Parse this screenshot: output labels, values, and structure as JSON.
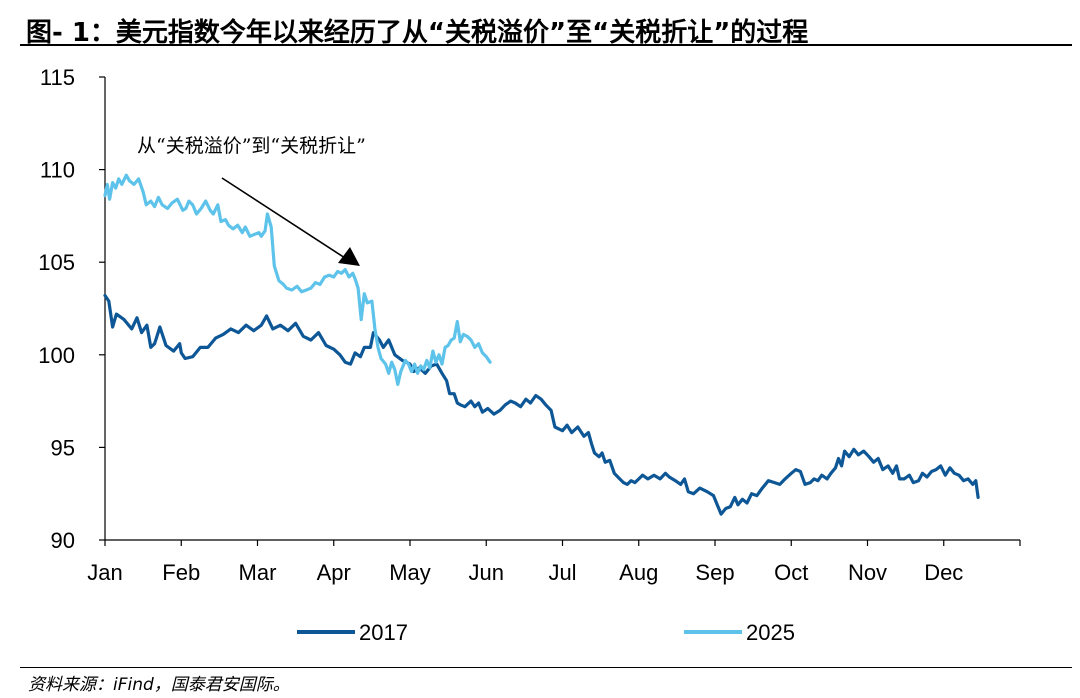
{
  "title": "图- 1：美元指数今年以来经历了从“关税溢价”至“关税折让”的过程",
  "source": "资料来源：iFind，国泰君安国际。",
  "annotation": "从“关税溢价”到“关税折让”",
  "colors": {
    "series_2017": "#0e5796",
    "series_2025": "#5ec3ea",
    "axis": "#000000"
  },
  "chart_data": {
    "type": "line",
    "x_categories": [
      "Jan",
      "Feb",
      "Mar",
      "Apr",
      "May",
      "Jun",
      "Jul",
      "Aug",
      "Sep",
      "Oct",
      "Nov",
      "Dec"
    ],
    "yticks": [
      90,
      95,
      100,
      105,
      110,
      115
    ],
    "ylim": [
      90,
      115
    ],
    "grid": false,
    "legend_position": "bottom",
    "series": [
      {
        "name": "2017",
        "color": "#0e5796",
        "points": [
          [
            0.0,
            103.2
          ],
          [
            0.05,
            102.9
          ],
          [
            0.1,
            101.5
          ],
          [
            0.15,
            102.2
          ],
          [
            0.25,
            101.9
          ],
          [
            0.35,
            101.4
          ],
          [
            0.42,
            102.0
          ],
          [
            0.48,
            101.2
          ],
          [
            0.55,
            101.6
          ],
          [
            0.6,
            100.4
          ],
          [
            0.65,
            100.6
          ],
          [
            0.72,
            101.5
          ],
          [
            0.8,
            100.5
          ],
          [
            0.9,
            100.2
          ],
          [
            0.98,
            100.6
          ],
          [
            1.0,
            100.1
          ],
          [
            1.05,
            99.8
          ],
          [
            1.15,
            99.9
          ],
          [
            1.25,
            100.4
          ],
          [
            1.35,
            100.4
          ],
          [
            1.45,
            100.9
          ],
          [
            1.55,
            101.1
          ],
          [
            1.65,
            101.4
          ],
          [
            1.75,
            101.2
          ],
          [
            1.85,
            101.6
          ],
          [
            1.95,
            101.3
          ],
          [
            2.05,
            101.6
          ],
          [
            2.12,
            102.1
          ],
          [
            2.2,
            101.4
          ],
          [
            2.3,
            101.6
          ],
          [
            2.4,
            101.3
          ],
          [
            2.5,
            101.7
          ],
          [
            2.6,
            101.0
          ],
          [
            2.7,
            100.8
          ],
          [
            2.8,
            101.2
          ],
          [
            2.9,
            100.5
          ],
          [
            3.0,
            100.3
          ],
          [
            3.08,
            100.0
          ],
          [
            3.15,
            99.6
          ],
          [
            3.22,
            99.5
          ],
          [
            3.28,
            100.1
          ],
          [
            3.35,
            99.9
          ],
          [
            3.4,
            100.4
          ],
          [
            3.48,
            100.4
          ],
          [
            3.52,
            101.2
          ],
          [
            3.6,
            100.8
          ],
          [
            3.65,
            100.4
          ],
          [
            3.72,
            100.8
          ],
          [
            3.8,
            100.0
          ],
          [
            3.9,
            99.7
          ],
          [
            4.0,
            99.5
          ],
          [
            4.05,
            99.1
          ],
          [
            4.12,
            99.3
          ],
          [
            4.2,
            99.0
          ],
          [
            4.28,
            99.4
          ],
          [
            4.35,
            99.5
          ],
          [
            4.42,
            99.0
          ],
          [
            4.48,
            98.6
          ],
          [
            4.52,
            97.9
          ],
          [
            4.58,
            97.9
          ],
          [
            4.62,
            97.4
          ],
          [
            4.66,
            97.3
          ],
          [
            4.72,
            97.2
          ],
          [
            4.8,
            97.5
          ],
          [
            4.85,
            97.2
          ],
          [
            4.9,
            97.4
          ],
          [
            4.95,
            96.9
          ],
          [
            5.02,
            97.1
          ],
          [
            5.1,
            96.8
          ],
          [
            5.18,
            97.0
          ],
          [
            5.25,
            97.3
          ],
          [
            5.32,
            97.5
          ],
          [
            5.38,
            97.4
          ],
          [
            5.45,
            97.2
          ],
          [
            5.52,
            97.6
          ],
          [
            5.58,
            97.4
          ],
          [
            5.65,
            97.8
          ],
          [
            5.72,
            97.6
          ],
          [
            5.78,
            97.3
          ],
          [
            5.85,
            97.0
          ],
          [
            5.9,
            96.1
          ],
          [
            6.0,
            95.9
          ],
          [
            6.06,
            96.2
          ],
          [
            6.12,
            95.8
          ],
          [
            6.2,
            96.1
          ],
          [
            6.28,
            95.6
          ],
          [
            6.34,
            95.8
          ],
          [
            6.38,
            95.2
          ],
          [
            6.42,
            94.7
          ],
          [
            6.48,
            94.5
          ],
          [
            6.52,
            94.7
          ],
          [
            6.56,
            94.2
          ],
          [
            6.62,
            94.3
          ],
          [
            6.68,
            93.6
          ],
          [
            6.75,
            93.3
          ],
          [
            6.8,
            93.1
          ],
          [
            6.85,
            93.0
          ],
          [
            6.9,
            93.2
          ],
          [
            6.95,
            93.1
          ],
          [
            7.0,
            93.3
          ],
          [
            7.05,
            93.5
          ],
          [
            7.12,
            93.3
          ],
          [
            7.2,
            93.5
          ],
          [
            7.28,
            93.3
          ],
          [
            7.35,
            93.6
          ],
          [
            7.4,
            93.4
          ],
          [
            7.48,
            93.2
          ],
          [
            7.55,
            93.0
          ],
          [
            7.6,
            93.3
          ],
          [
            7.65,
            92.6
          ],
          [
            7.72,
            92.5
          ],
          [
            7.8,
            92.8
          ],
          [
            7.9,
            92.6
          ],
          [
            7.98,
            92.4
          ],
          [
            8.02,
            92.0
          ],
          [
            8.08,
            91.4
          ],
          [
            8.14,
            91.7
          ],
          [
            8.2,
            91.8
          ],
          [
            8.26,
            92.3
          ],
          [
            8.3,
            91.9
          ],
          [
            8.36,
            92.2
          ],
          [
            8.42,
            92.0
          ],
          [
            8.48,
            92.5
          ],
          [
            8.55,
            92.4
          ],
          [
            8.62,
            92.8
          ],
          [
            8.7,
            93.2
          ],
          [
            8.78,
            93.1
          ],
          [
            8.85,
            93.0
          ],
          [
            8.92,
            93.3
          ],
          [
            9.0,
            93.6
          ],
          [
            9.06,
            93.8
          ],
          [
            9.12,
            93.7
          ],
          [
            9.18,
            93.0
          ],
          [
            9.25,
            93.1
          ],
          [
            9.3,
            93.3
          ],
          [
            9.35,
            93.2
          ],
          [
            9.4,
            93.5
          ],
          [
            9.47,
            93.3
          ],
          [
            9.52,
            93.6
          ],
          [
            9.58,
            93.9
          ],
          [
            9.62,
            94.4
          ],
          [
            9.66,
            94.0
          ],
          [
            9.7,
            94.8
          ],
          [
            9.76,
            94.5
          ],
          [
            9.82,
            94.9
          ],
          [
            9.88,
            94.6
          ],
          [
            9.95,
            94.8
          ],
          [
            10.02,
            94.5
          ],
          [
            10.08,
            94.2
          ],
          [
            10.14,
            94.4
          ],
          [
            10.2,
            93.8
          ],
          [
            10.27,
            94.0
          ],
          [
            10.33,
            93.6
          ],
          [
            10.38,
            94.0
          ],
          [
            10.42,
            93.3
          ],
          [
            10.48,
            93.3
          ],
          [
            10.55,
            93.5
          ],
          [
            10.6,
            93.1
          ],
          [
            10.67,
            93.2
          ],
          [
            10.72,
            93.6
          ],
          [
            10.78,
            93.4
          ],
          [
            10.84,
            93.7
          ],
          [
            10.9,
            93.8
          ],
          [
            10.96,
            94.0
          ],
          [
            11.02,
            93.5
          ],
          [
            11.08,
            93.9
          ],
          [
            11.14,
            93.6
          ],
          [
            11.2,
            93.5
          ],
          [
            11.26,
            93.2
          ],
          [
            11.32,
            93.3
          ],
          [
            11.38,
            93.0
          ],
          [
            11.42,
            93.2
          ],
          [
            11.45,
            92.3
          ]
        ]
      },
      {
        "name": "2025",
        "color": "#5ec3ea",
        "points": [
          [
            0.0,
            108.6
          ],
          [
            0.03,
            109.2
          ],
          [
            0.06,
            108.4
          ],
          [
            0.1,
            109.3
          ],
          [
            0.14,
            109.0
          ],
          [
            0.18,
            109.5
          ],
          [
            0.22,
            109.2
          ],
          [
            0.28,
            109.7
          ],
          [
            0.32,
            109.4
          ],
          [
            0.38,
            109.2
          ],
          [
            0.44,
            109.5
          ],
          [
            0.5,
            108.8
          ],
          [
            0.54,
            108.1
          ],
          [
            0.6,
            108.3
          ],
          [
            0.65,
            108.0
          ],
          [
            0.7,
            108.5
          ],
          [
            0.75,
            108.1
          ],
          [
            0.82,
            107.9
          ],
          [
            0.88,
            108.2
          ],
          [
            0.95,
            108.4
          ],
          [
            1.02,
            107.8
          ],
          [
            1.06,
            107.9
          ],
          [
            1.1,
            108.3
          ],
          [
            1.15,
            108.1
          ],
          [
            1.2,
            107.6
          ],
          [
            1.26,
            107.9
          ],
          [
            1.32,
            108.3
          ],
          [
            1.38,
            107.8
          ],
          [
            1.42,
            107.6
          ],
          [
            1.48,
            108.1
          ],
          [
            1.52,
            107.2
          ],
          [
            1.58,
            107.3
          ],
          [
            1.62,
            107.0
          ],
          [
            1.68,
            106.8
          ],
          [
            1.74,
            107.0
          ],
          [
            1.8,
            106.6
          ],
          [
            1.84,
            106.9
          ],
          [
            1.9,
            106.4
          ],
          [
            1.96,
            106.5
          ],
          [
            2.02,
            106.6
          ],
          [
            2.05,
            106.4
          ],
          [
            2.1,
            106.7
          ],
          [
            2.13,
            107.6
          ],
          [
            2.18,
            106.9
          ],
          [
            2.22,
            104.8
          ],
          [
            2.28,
            104.0
          ],
          [
            2.34,
            103.8
          ],
          [
            2.38,
            103.6
          ],
          [
            2.45,
            103.5
          ],
          [
            2.52,
            103.7
          ],
          [
            2.58,
            103.4
          ],
          [
            2.64,
            103.5
          ],
          [
            2.7,
            103.6
          ],
          [
            2.76,
            103.9
          ],
          [
            2.82,
            103.8
          ],
          [
            2.88,
            104.2
          ],
          [
            2.94,
            104.3
          ],
          [
            3.0,
            104.2
          ],
          [
            3.05,
            104.5
          ],
          [
            3.1,
            104.4
          ],
          [
            3.15,
            104.6
          ],
          [
            3.2,
            104.2
          ],
          [
            3.25,
            104.4
          ],
          [
            3.28,
            104.1
          ],
          [
            3.32,
            103.6
          ],
          [
            3.36,
            101.9
          ],
          [
            3.4,
            103.3
          ],
          [
            3.44,
            102.8
          ],
          [
            3.5,
            102.9
          ],
          [
            3.54,
            101.4
          ],
          [
            3.58,
            100.4
          ],
          [
            3.62,
            99.8
          ],
          [
            3.68,
            99.5
          ],
          [
            3.72,
            99.0
          ],
          [
            3.76,
            99.6
          ],
          [
            3.8,
            99.2
          ],
          [
            3.84,
            98.4
          ],
          [
            3.88,
            99.1
          ],
          [
            3.94,
            99.7
          ],
          [
            3.98,
            99.5
          ],
          [
            4.02,
            99.1
          ],
          [
            4.06,
            99.5
          ],
          [
            4.1,
            99.0
          ],
          [
            4.14,
            99.4
          ],
          [
            4.18,
            99.2
          ],
          [
            4.22,
            99.7
          ],
          [
            4.26,
            99.3
          ],
          [
            4.3,
            100.2
          ],
          [
            4.34,
            99.6
          ],
          [
            4.38,
            100.0
          ],
          [
            4.42,
            99.5
          ],
          [
            4.46,
            100.4
          ],
          [
            4.5,
            100.5
          ],
          [
            4.54,
            100.8
          ],
          [
            4.58,
            100.9
          ],
          [
            4.62,
            101.8
          ],
          [
            4.66,
            100.7
          ],
          [
            4.7,
            101.1
          ],
          [
            4.75,
            101.0
          ],
          [
            4.8,
            100.8
          ],
          [
            4.85,
            100.4
          ],
          [
            4.9,
            100.6
          ],
          [
            4.95,
            100.1
          ],
          [
            5.0,
            99.9
          ],
          [
            5.05,
            99.6
          ]
        ]
      }
    ]
  }
}
